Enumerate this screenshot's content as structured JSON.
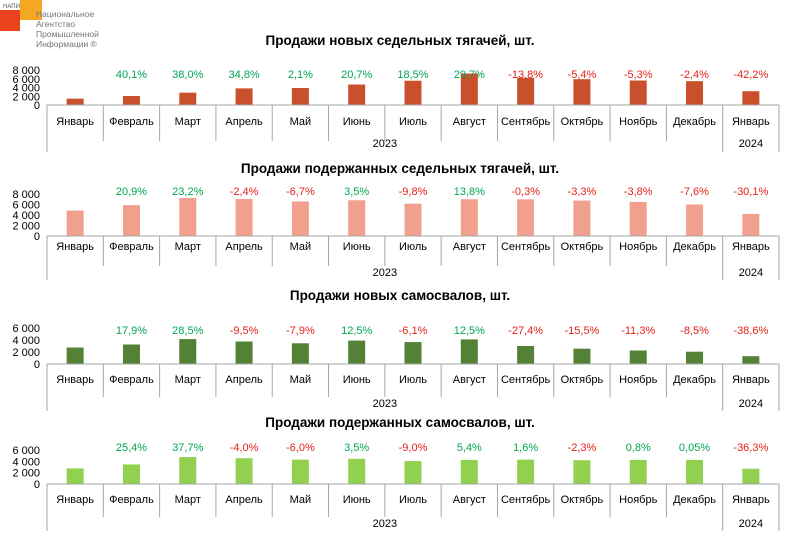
{
  "logo": {
    "abbr": "НАПИ",
    "lines": [
      "Национальное",
      "Агентство",
      "Промышленной",
      "Информации ®"
    ],
    "colors": {
      "orange": "#F5A623",
      "red": "#E8431C"
    }
  },
  "colors": {
    "positive": "#00A651",
    "negative": "#E32219",
    "axis": "#A6A6A6"
  },
  "chart_data": [
    {
      "type": "bar",
      "title": "Продажи новых седельных тягачей, шт.",
      "color": "#C9502C",
      "categories": [
        "Январь",
        "Февраль",
        "Март",
        "Апрель",
        "Май",
        "Июнь",
        "Июль",
        "Август",
        "Сентябрь",
        "Октябрь",
        "Ноябрь",
        "Декабрь",
        "Январь"
      ],
      "years": [
        {
          "label": "2023",
          "span": 12
        },
        {
          "label": "2024",
          "span": 1
        }
      ],
      "values": [
        1450,
        2050,
        2820,
        3800,
        3880,
        4680,
        5550,
        7200,
        6200,
        5900,
        5600,
        5450,
        3150
      ],
      "data_labels": [
        "",
        "40,1%",
        "38,0%",
        "34,8%",
        "2,1%",
        "20,7%",
        "18,5%",
        "29,7%",
        "-13,8%",
        "-5,4%",
        "-5,3%",
        "-2,4%",
        "-42,2%"
      ],
      "yticks": [
        "0",
        "2 000",
        "4 000",
        "6 000",
        "8 000"
      ],
      "ylim": [
        0,
        8000
      ]
    },
    {
      "type": "bar",
      "title": "Продажи подержанных седельных тягачей, шт.",
      "color": "#F0A08C",
      "categories": [
        "Январь",
        "Февраль",
        "Март",
        "Апрель",
        "Май",
        "Июнь",
        "Июль",
        "Август",
        "Сентябрь",
        "Октябрь",
        "Ноябрь",
        "Декабрь",
        "Январь"
      ],
      "years": [
        {
          "label": "2023",
          "span": 12
        },
        {
          "label": "2024",
          "span": 1
        }
      ],
      "values": [
        4850,
        5870,
        7230,
        7050,
        6580,
        6810,
        6150,
        7000,
        6980,
        6750,
        6500,
        6000,
        4200
      ],
      "data_labels": [
        "",
        "20,9%",
        "23,2%",
        "-2,4%",
        "-6,7%",
        "3,5%",
        "-9,8%",
        "13,8%",
        "-0,3%",
        "-3,3%",
        "-3,8%",
        "-7,6%",
        "-30,1%"
      ],
      "yticks": [
        "0",
        "2 000",
        "4 000",
        "6 000",
        "8 000"
      ],
      "ylim": [
        0,
        8000
      ]
    },
    {
      "type": "bar",
      "title": "Продажи новых самосвалов, шт.",
      "color": "#538135",
      "categories": [
        "Январь",
        "Февраль",
        "Март",
        "Апрель",
        "Май",
        "Июнь",
        "Июль",
        "Август",
        "Сентябрь",
        "Октябрь",
        "Ноябрь",
        "Декабрь",
        "Январь"
      ],
      "years": [
        {
          "label": "2023",
          "span": 12
        },
        {
          "label": "2024",
          "span": 1
        }
      ],
      "values": [
        2750,
        3250,
        4150,
        3750,
        3450,
        3900,
        3650,
        4100,
        3000,
        2550,
        2250,
        2050,
        1300
      ],
      "data_labels": [
        "",
        "17,9%",
        "28,5%",
        "-9,5%",
        "-7,9%",
        "12,5%",
        "-6,1%",
        "12,5%",
        "-27,4%",
        "-15,5%",
        "-11,3%",
        "-8,5%",
        "-38,6%"
      ],
      "yticks": [
        "0",
        "2 000",
        "4 000",
        "6 000"
      ],
      "ylim": [
        0,
        6000
      ]
    },
    {
      "type": "bar",
      "title": "Продажи подержанных самосвалов, шт.",
      "color": "#92D050",
      "categories": [
        "Январь",
        "Февраль",
        "Март",
        "Апрель",
        "Май",
        "Июнь",
        "Июль",
        "Август",
        "Сентябрь",
        "Октябрь",
        "Ноябрь",
        "Декабрь",
        "Январь"
      ],
      "years": [
        {
          "label": "2023",
          "span": 12
        },
        {
          "label": "2024",
          "span": 1
        }
      ],
      "values": [
        2750,
        3450,
        4750,
        4550,
        4300,
        4450,
        4050,
        4250,
        4300,
        4200,
        4250,
        4250,
        2700
      ],
      "data_labels": [
        "",
        "25,4%",
        "37,7%",
        "-4,0%",
        "-6,0%",
        "3,5%",
        "-9,0%",
        "5,4%",
        "1,6%",
        "-2,3%",
        "0,8%",
        "0,05%",
        "-36,3%"
      ],
      "yticks": [
        "0",
        "2 000",
        "4 000",
        "6 000"
      ],
      "ylim": [
        0,
        6000
      ]
    }
  ]
}
